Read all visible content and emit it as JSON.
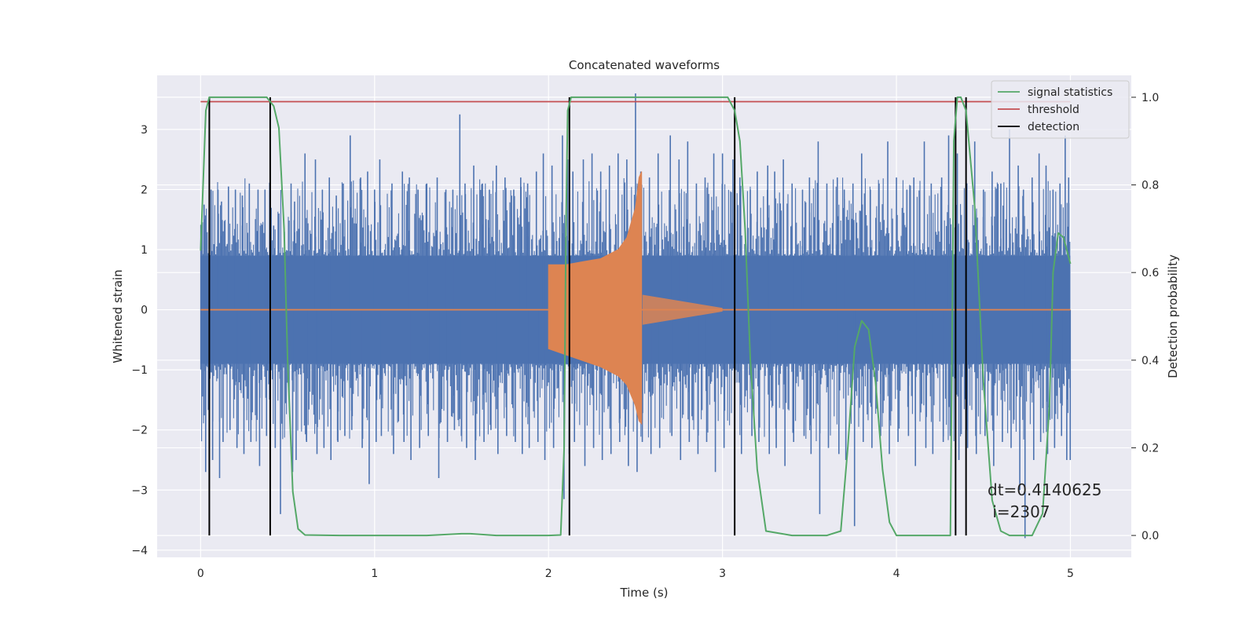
{
  "chart_data": {
    "type": "line",
    "title": "Concatenated waveforms",
    "xlabel": "Time (s)",
    "ylabel": "Whitened strain",
    "y2label": "Detection probability",
    "xlim": [
      -0.25,
      5.35
    ],
    "ylim": [
      -4.12,
      3.9
    ],
    "y2lim": [
      -0.05,
      1.05
    ],
    "xticks": [
      "0",
      "1",
      "2",
      "3",
      "4",
      "5"
    ],
    "yticks": [
      "3",
      "2",
      "1",
      "0",
      "−1",
      "−2",
      "−3",
      "−4"
    ],
    "y2ticks": [
      "1.0",
      "0.8",
      "0.6",
      "0.4",
      "0.2",
      "0.0"
    ],
    "grid": true,
    "legend_position": "top-right",
    "colors": {
      "background": "#eaeaf2",
      "strain": "#4c72b0",
      "injection": "#dd8452",
      "signal_statistics": "#55a868",
      "threshold": "#c44e52",
      "detection": "#000000"
    },
    "series": [
      {
        "name": "signal statistics",
        "axis": "right",
        "x": [
          0.0,
          0.03,
          0.05,
          0.08,
          0.12,
          0.2,
          0.3,
          0.38,
          0.42,
          0.45,
          0.48,
          0.5,
          0.53,
          0.56,
          0.6,
          0.8,
          1.0,
          1.3,
          1.5,
          1.55,
          1.7,
          2.0,
          2.07,
          2.09,
          2.1,
          2.11,
          2.13,
          2.16,
          2.3,
          2.6,
          2.9,
          3.03,
          3.07,
          3.1,
          3.13,
          3.16,
          3.2,
          3.25,
          3.4,
          3.6,
          3.68,
          3.72,
          3.76,
          3.8,
          3.84,
          3.88,
          3.92,
          3.96,
          4.0,
          4.1,
          4.2,
          4.31,
          4.33,
          4.35,
          4.37,
          4.4,
          4.45,
          4.5,
          4.55,
          4.6,
          4.65,
          4.7,
          4.78,
          4.84,
          4.88,
          4.9,
          4.93,
          4.96,
          5.0
        ],
        "values": [
          0.65,
          0.97,
          1.0,
          1.0,
          1.0,
          1.0,
          1.0,
          1.0,
          0.98,
          0.93,
          0.7,
          0.4,
          0.1,
          0.015,
          0.001,
          0.0,
          0.0,
          0.0,
          0.004,
          0.004,
          0.0,
          0.0,
          0.001,
          0.2,
          0.7,
          0.97,
          1.0,
          1.0,
          1.0,
          1.0,
          1.0,
          1.0,
          0.97,
          0.9,
          0.7,
          0.4,
          0.15,
          0.01,
          0.0,
          0.0,
          0.01,
          0.2,
          0.43,
          0.49,
          0.47,
          0.35,
          0.15,
          0.03,
          0.0,
          0.0,
          0.0,
          0.0,
          0.9,
          1.0,
          1.0,
          0.97,
          0.75,
          0.35,
          0.08,
          0.01,
          0.0,
          0.0,
          0.0,
          0.05,
          0.3,
          0.6,
          0.69,
          0.68,
          0.62
        ]
      },
      {
        "name": "threshold",
        "axis": "right",
        "x": [
          0.0,
          5.0
        ],
        "values": [
          0.99,
          0.99
        ]
      },
      {
        "name": "detection",
        "axis": "right",
        "x": [
          0.05,
          0.4,
          2.12,
          3.07,
          4.34,
          4.4
        ],
        "ymin": 0.0,
        "ymax": 1.0
      },
      {
        "name": "",
        "axis": "left",
        "description_color": "strain",
        "x_range": [
          0.0,
          5.0
        ],
        "band": [
          -0.9,
          0.9
        ],
        "spikes_x": [
          0.02,
          0.06,
          0.1,
          0.12,
          0.16,
          0.2,
          0.24,
          0.28,
          0.33,
          0.37,
          0.42,
          0.45,
          0.52,
          0.54,
          0.6,
          0.66,
          0.7,
          0.74,
          0.78,
          0.82,
          0.86,
          0.92,
          0.96,
          1.0,
          1.03,
          1.1,
          1.16,
          1.2,
          1.25,
          1.3,
          1.36,
          1.41,
          1.45,
          1.49,
          1.52,
          1.57,
          1.62,
          1.66,
          1.7,
          1.75,
          1.8,
          1.84,
          1.88,
          1.93,
          1.97,
          2.02,
          2.08,
          2.11,
          2.14,
          2.2,
          2.25,
          2.3,
          2.35,
          2.4,
          2.45,
          2.5,
          2.53,
          2.58,
          2.63,
          2.7,
          2.75,
          2.8,
          2.85,
          2.9,
          2.95,
          3.0,
          3.06,
          3.1,
          3.16,
          3.2,
          3.26,
          3.3,
          3.35,
          3.4,
          3.46,
          3.5,
          3.55,
          3.6,
          3.66,
          3.7,
          3.75,
          3.8,
          3.85,
          3.9,
          3.95,
          4.0,
          4.06,
          4.1,
          4.16,
          4.2,
          4.26,
          4.3,
          4.35,
          4.4,
          4.45,
          4.5,
          4.55,
          4.6,
          4.65,
          4.7,
          4.73,
          4.78,
          4.82,
          4.86,
          4.9,
          4.94,
          4.97,
          4.99
        ],
        "spikes_top": [
          1.75,
          2.0,
          2.0,
          1.8,
          2.05,
          2.0,
          1.9,
          2.1,
          2.0,
          2.0,
          1.4,
          1.6,
          2.1,
          1.8,
          2.6,
          2.5,
          2.0,
          2.2,
          1.9,
          2.1,
          2.9,
          2.2,
          2.3,
          2.0,
          2.5,
          2.1,
          2.3,
          2.2,
          2.0,
          2.1,
          2.2,
          2.0,
          2.0,
          3.25,
          2.1,
          2.4,
          2.1,
          2.0,
          2.4,
          2.2,
          2.0,
          2.2,
          2.1,
          2.3,
          2.6,
          2.4,
          2.9,
          2.5,
          2.3,
          2.5,
          2.6,
          2.3,
          2.4,
          2.6,
          2.5,
          3.6,
          2.3,
          2.2,
          2.6,
          2.9,
          2.5,
          2.8,
          2.1,
          2.2,
          2.6,
          2.6,
          2.5,
          2.2,
          2.0,
          2.3,
          2.4,
          2.3,
          2.5,
          2.1,
          2.0,
          2.2,
          2.8,
          2.1,
          2.2,
          2.0,
          2.1,
          2.6,
          2.0,
          2.1,
          2.8,
          2.2,
          2.0,
          2.2,
          2.8,
          2.1,
          2.2,
          2.9,
          2.6,
          2.0,
          2.8,
          2.0,
          2.3,
          2.1,
          3.0,
          2.4,
          2.0,
          2.2,
          2.6,
          2.4,
          2.0,
          2.1,
          2.9,
          2.2
        ],
        "spikes_bottom": [
          -2.7,
          -2.5,
          -2.8,
          -2.2,
          -2.0,
          -2.3,
          -2.4,
          -2.2,
          -2.6,
          -2.1,
          -2.3,
          -3.4,
          -2.7,
          -2.5,
          -2.2,
          -2.4,
          -2.3,
          -2.5,
          -2.2,
          -2.1,
          -2.0,
          -2.3,
          -2.9,
          -2.2,
          -2.1,
          -2.4,
          -2.2,
          -2.5,
          -2.3,
          -2.1,
          -2.8,
          -2.2,
          -2.0,
          -2.1,
          -2.3,
          -2.5,
          -2.2,
          -2.0,
          -2.4,
          -2.1,
          -2.2,
          -2.4,
          -2.3,
          -2.2,
          -2.5,
          -2.3,
          -3.15,
          -2.4,
          -2.2,
          -2.6,
          -2.3,
          -2.5,
          -2.4,
          -2.2,
          -2.6,
          -2.7,
          -2.2,
          -2.4,
          -2.3,
          -2.1,
          -2.5,
          -2.2,
          -2.4,
          -2.2,
          -2.7,
          -2.3,
          -3.2,
          -2.4,
          -2.1,
          -2.2,
          -2.4,
          -2.3,
          -2.6,
          -2.2,
          -2.1,
          -2.4,
          -3.4,
          -2.3,
          -2.4,
          -2.5,
          -3.6,
          -2.2,
          -2.3,
          -2.1,
          -2.4,
          -2.2,
          -2.1,
          -2.6,
          -2.3,
          -2.4,
          -2.2,
          -2.1,
          -2.5,
          -2.3,
          -2.4,
          -2.1,
          -2.6,
          -2.2,
          -2.3,
          -3.0,
          -3.8,
          -2.5,
          -2.2,
          -2.4,
          -2.3,
          -2.1,
          -2.5,
          -2.5
        ]
      },
      {
        "name": "",
        "axis": "left",
        "description_color": "injection",
        "x": [
          2.0,
          2.1,
          2.2,
          2.3,
          2.4,
          2.45,
          2.5,
          2.52,
          2.535
        ],
        "upper": [
          0.75,
          0.75,
          0.8,
          0.85,
          1.0,
          1.2,
          1.7,
          2.2,
          2.3
        ],
        "lower": [
          -0.65,
          -0.75,
          -0.85,
          -0.95,
          -1.1,
          -1.25,
          -1.6,
          -1.85,
          -1.9
        ],
        "tail_x": [
          2.54,
          3.0
        ],
        "tail_amp": [
          0.25,
          0.03
        ]
      }
    ],
    "annotations": [
      "dt=0.4140625",
      " i=2307"
    ]
  }
}
